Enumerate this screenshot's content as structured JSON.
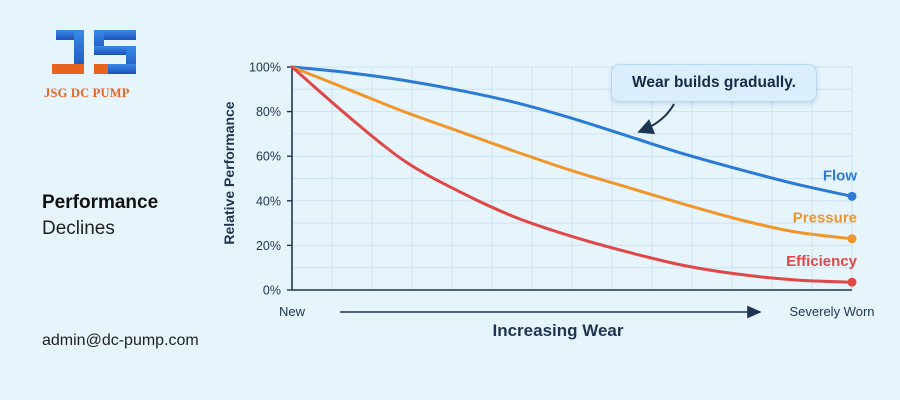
{
  "brand": {
    "name": "JSG DC PUMP",
    "colors": {
      "orange": "#e8641c",
      "blue": "#2e6fd6"
    }
  },
  "headline": {
    "strong": "Performance",
    "sub": "Declines"
  },
  "contact": {
    "email": "admin@dc-pump.com"
  },
  "chart_data": {
    "type": "line",
    "title": "",
    "xlabel": "Increasing Wear",
    "ylabel": "Relative Performance",
    "x_tick_labels": [
      "New",
      "Severely Worn"
    ],
    "xlim": [
      0,
      1
    ],
    "ylim": [
      0,
      100
    ],
    "y_ticks": [
      0,
      20,
      40,
      60,
      80,
      100
    ],
    "y_tick_labels": [
      "0%",
      "20%",
      "40%",
      "60%",
      "80%",
      "100%"
    ],
    "grid": true,
    "legend": "inline labels at line ends",
    "annotation": "Wear builds gradually.",
    "series": [
      {
        "name": "Flow",
        "color": "#2a7ad6",
        "x": [
          0,
          0.1,
          0.2,
          0.3,
          0.4,
          0.5,
          0.6,
          0.7,
          0.8,
          0.9,
          1.0
        ],
        "values": [
          100,
          97.5,
          94,
          89.5,
          84,
          77,
          69,
          61,
          54,
          47.5,
          42
        ]
      },
      {
        "name": "Pressure",
        "color": "#f0962a",
        "x": [
          0,
          0.1,
          0.2,
          0.3,
          0.4,
          0.5,
          0.6,
          0.7,
          0.8,
          0.9,
          1.0
        ],
        "values": [
          100,
          90,
          80,
          71,
          62,
          53.5,
          46,
          38.5,
          31.5,
          26,
          23
        ]
      },
      {
        "name": "Efficiency",
        "color": "#e04848",
        "x": [
          0,
          0.1,
          0.2,
          0.3,
          0.4,
          0.5,
          0.6,
          0.7,
          0.8,
          0.9,
          1.0
        ],
        "values": [
          100,
          78,
          58,
          44,
          32.5,
          24,
          17,
          11,
          7,
          4.5,
          3.5
        ]
      }
    ]
  }
}
